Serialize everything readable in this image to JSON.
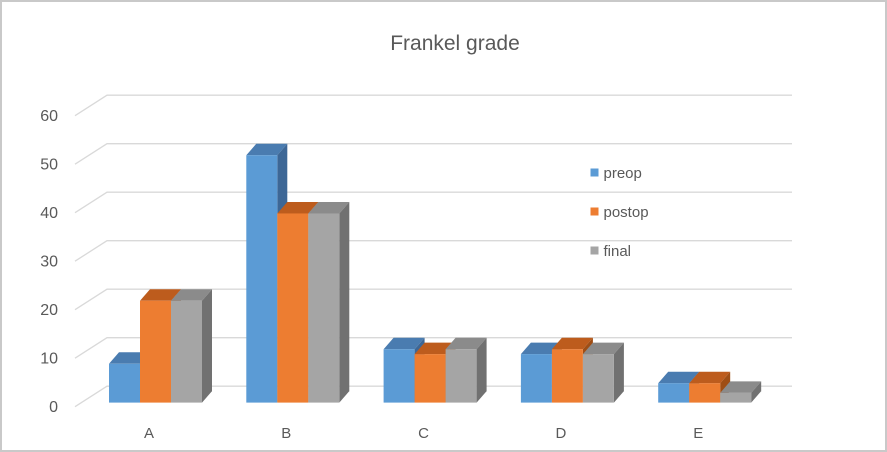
{
  "title": "Frankel grade",
  "text_color": "#595959",
  "frame": {
    "border_color": "#C9C9C9",
    "background": "#FFFFFF"
  },
  "chart_data": {
    "type": "bar",
    "style": "3d-clustered-column",
    "title": "Frankel grade",
    "categories": [
      "A",
      "B",
      "C",
      "D",
      "E"
    ],
    "series": [
      {
        "name": "preop",
        "color": "#5B9BD5",
        "top_color": "#4A7CB0",
        "side_color": "#3D6796",
        "values": [
          8,
          51,
          11,
          10,
          4
        ]
      },
      {
        "name": "postop",
        "color": "#ED7D31",
        "top_color": "#BD5C1D",
        "side_color": "#9F4E15",
        "values": [
          21,
          39,
          10,
          11,
          4
        ]
      },
      {
        "name": "final",
        "color": "#A5A5A5",
        "top_color": "#8B8B8B",
        "side_color": "#717171",
        "values": [
          21,
          39,
          11,
          10,
          2
        ]
      }
    ],
    "xlabel": "",
    "ylabel": "",
    "ylim": [
      0,
      60
    ],
    "y_ticks": [
      0,
      10,
      20,
      30,
      40,
      50,
      60
    ],
    "grid": true,
    "gridline_color": "#D9D9D9",
    "legend": {
      "position": "middle-right",
      "entries": [
        "preop",
        "postop",
        "final"
      ]
    }
  }
}
